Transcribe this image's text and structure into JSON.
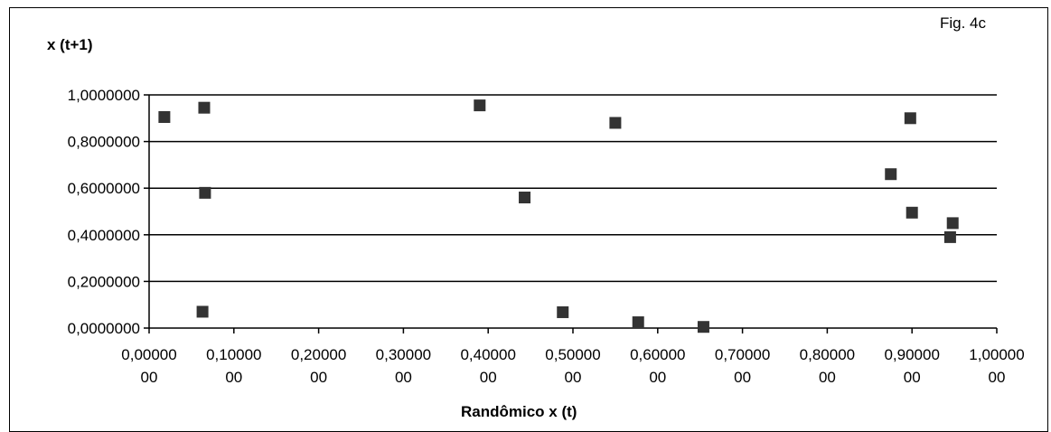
{
  "figure_label": "Fig. 4c",
  "chart_data": {
    "type": "scatter",
    "title": "",
    "xlabel": "Randômico x (t)",
    "ylabel": "x (t+1)",
    "xlim": [
      0,
      1
    ],
    "ylim": [
      0,
      1
    ],
    "x_ticks": [
      {
        "value": 0.0,
        "line1": "0,00000",
        "line2": "00"
      },
      {
        "value": 0.1,
        "line1": "0,10000",
        "line2": "00"
      },
      {
        "value": 0.2,
        "line1": "0,20000",
        "line2": "00"
      },
      {
        "value": 0.3,
        "line1": "0,30000",
        "line2": "00"
      },
      {
        "value": 0.4,
        "line1": "0,40000",
        "line2": "00"
      },
      {
        "value": 0.5,
        "line1": "0,50000",
        "line2": "00"
      },
      {
        "value": 0.6,
        "line1": "0,60000",
        "line2": "00"
      },
      {
        "value": 0.7,
        "line1": "0,70000",
        "line2": "00"
      },
      {
        "value": 0.8,
        "line1": "0,80000",
        "line2": "00"
      },
      {
        "value": 0.9,
        "line1": "0,90000",
        "line2": "00"
      },
      {
        "value": 1.0,
        "line1": "1,00000",
        "line2": "00"
      }
    ],
    "y_ticks": [
      {
        "value": 0.0,
        "label": "0,0000000"
      },
      {
        "value": 0.2,
        "label": "0,2000000"
      },
      {
        "value": 0.4,
        "label": "0,4000000"
      },
      {
        "value": 0.6,
        "label": "0,6000000"
      },
      {
        "value": 0.8,
        "label": "0,8000000"
      },
      {
        "value": 1.0,
        "label": "1,0000000"
      }
    ],
    "grid": "horizontal",
    "marker": "square",
    "marker_color": "#333333",
    "points": [
      {
        "x": 0.018,
        "y": 0.905
      },
      {
        "x": 0.065,
        "y": 0.945
      },
      {
        "x": 0.066,
        "y": 0.58
      },
      {
        "x": 0.063,
        "y": 0.07
      },
      {
        "x": 0.39,
        "y": 0.955
      },
      {
        "x": 0.443,
        "y": 0.56
      },
      {
        "x": 0.488,
        "y": 0.068
      },
      {
        "x": 0.55,
        "y": 0.88
      },
      {
        "x": 0.577,
        "y": 0.025
      },
      {
        "x": 0.654,
        "y": 0.005
      },
      {
        "x": 0.875,
        "y": 0.66
      },
      {
        "x": 0.898,
        "y": 0.9
      },
      {
        "x": 0.9,
        "y": 0.495
      },
      {
        "x": 0.945,
        "y": 0.39
      },
      {
        "x": 0.948,
        "y": 0.45
      }
    ]
  }
}
